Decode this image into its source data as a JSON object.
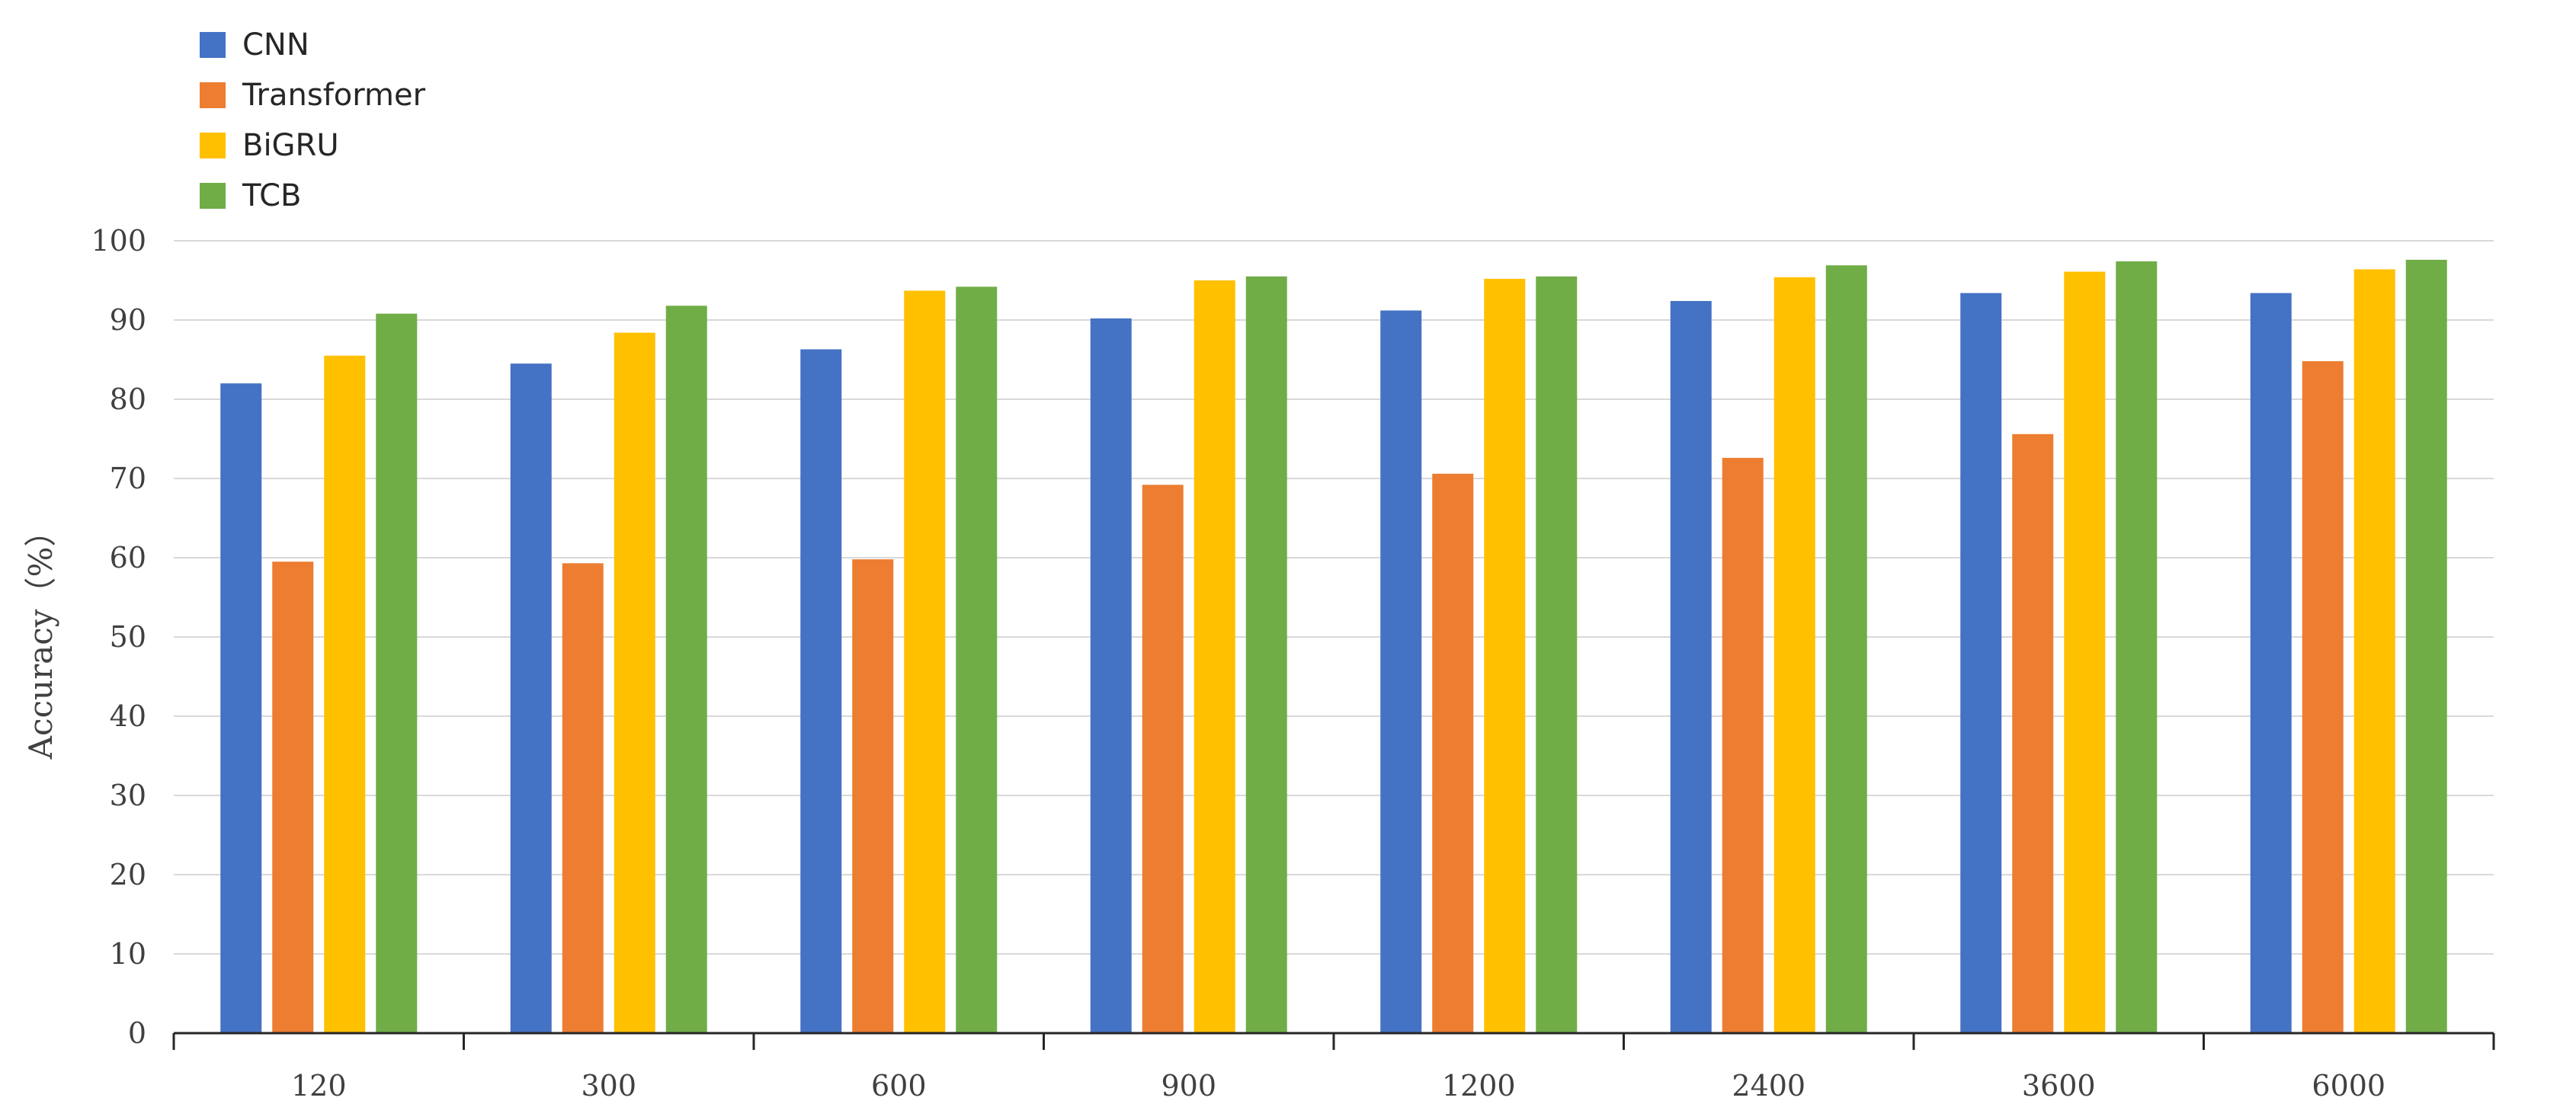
{
  "chart_data": {
    "type": "bar",
    "title": "",
    "xlabel": "",
    "ylabel": "Accuracy（%）",
    "ylim": [
      0,
      100
    ],
    "yticks": [
      0,
      10,
      20,
      30,
      40,
      50,
      60,
      70,
      80,
      90,
      100
    ],
    "grid": true,
    "legend_position": "top-left",
    "categories": [
      "120",
      "300",
      "600",
      "900",
      "1200",
      "2400",
      "3600",
      "6000"
    ],
    "series": [
      {
        "name": "CNN",
        "color": "#4472C4",
        "values": [
          82.0,
          84.5,
          86.3,
          90.2,
          91.2,
          92.4,
          93.4,
          93.4
        ]
      },
      {
        "name": "Transformer",
        "color": "#ED7D31",
        "values": [
          59.5,
          59.3,
          59.8,
          69.2,
          70.6,
          72.6,
          75.6,
          84.8
        ]
      },
      {
        "name": "BiGRU",
        "color": "#FFC000",
        "values": [
          85.5,
          88.4,
          93.7,
          95.0,
          95.2,
          95.4,
          96.1,
          96.4
        ]
      },
      {
        "name": "TCB",
        "color": "#70AD47",
        "values": [
          90.8,
          91.8,
          94.2,
          95.5,
          95.5,
          96.9,
          97.4,
          97.6
        ]
      }
    ]
  }
}
